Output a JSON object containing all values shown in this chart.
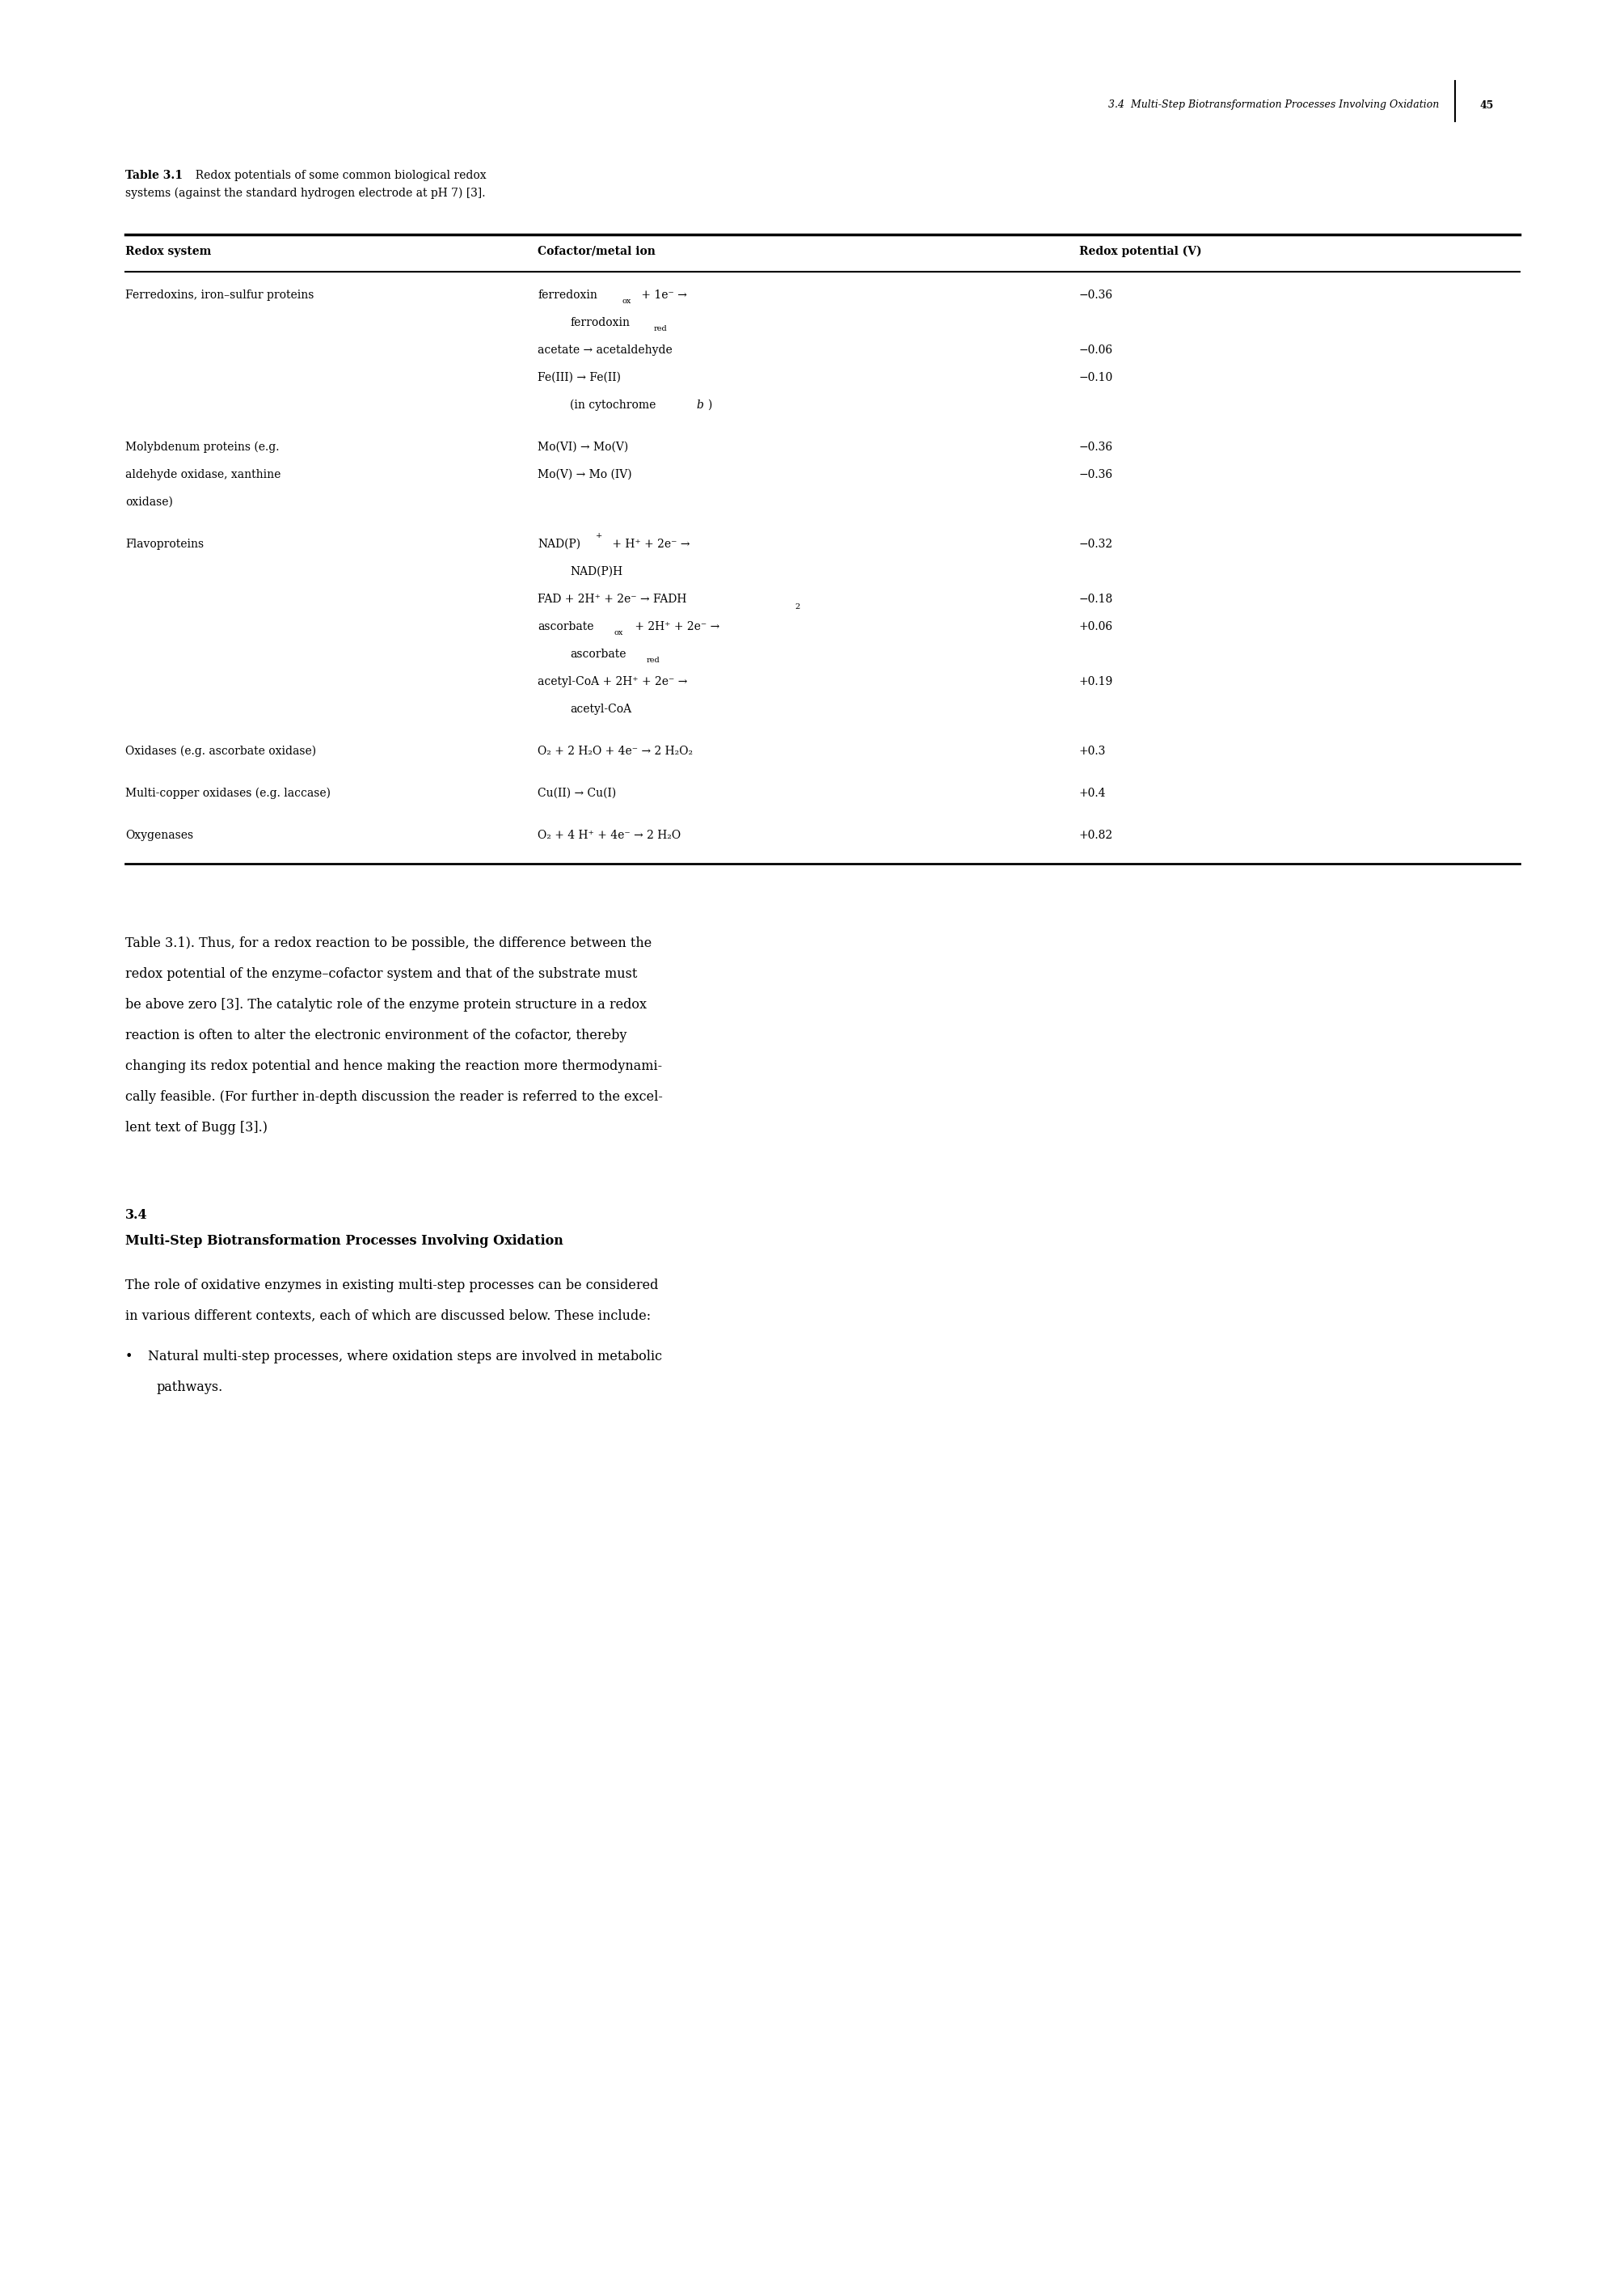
{
  "page_header": "3.4  Multi-Step Biotransformation Processes Involving Oxidation",
  "page_number": "45",
  "table_caption_bold": "Table 3.1",
  "table_caption_normal": "  Redox potentials of some common biological redox\nsystems (against the standard hydrogen electrode at pH 7) [3].",
  "col_headers": [
    "Redox system",
    "Cofactor/metal ion",
    "Redox potential (V)"
  ],
  "bg_color": "#ffffff",
  "text_color": "#000000"
}
